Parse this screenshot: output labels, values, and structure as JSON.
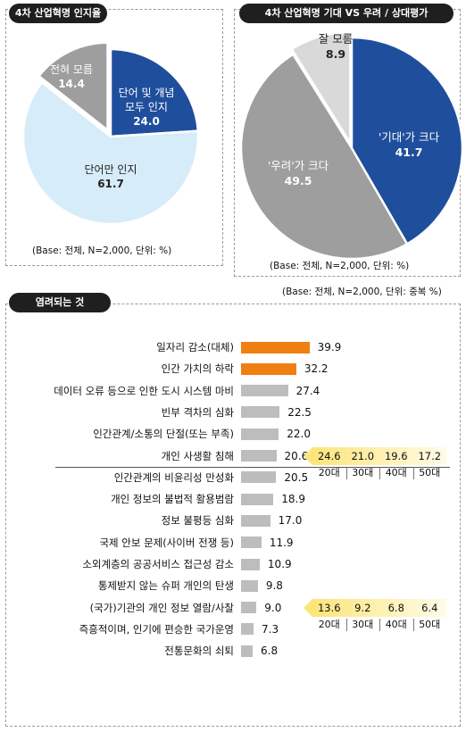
{
  "colors": {
    "navy": "#1f4e9c",
    "skyblue": "#d6ecf8",
    "gray": "#9e9e9e",
    "lightgray": "#d9d9d9",
    "orange": "#f07f12",
    "barGray": "#bdbdbd",
    "highlight": "#fdf2b5"
  },
  "header": {
    "awareness_title": "4차 산업혁명 인지율",
    "expectation_title": "4차 산업혁명 기대 VS 우려 / 상대평가",
    "concerns_title": "염려되는 것"
  },
  "notes": {
    "awareness_base": "(Base: 전체, N=2,000, 단위: %)",
    "expectation_base": "(Base: 전체, N=2,000, 단위: %)",
    "concerns_base": "(Base: 전체, N=2,000, 단위: 중복 %)"
  },
  "chart_data": [
    {
      "type": "pie",
      "title": "4차 산업혁명 인지율",
      "slices": [
        {
          "label": "단어 및 개념\n모두 인지",
          "value": 24.0,
          "display": "24.0",
          "color": "#1f4e9c"
        },
        {
          "label": "단어만 인지",
          "value": 61.7,
          "display": "61.7",
          "color": "#d6ecf8"
        },
        {
          "label": "전혀 모름",
          "value": 14.4,
          "display": "14.4",
          "color": "#9e9e9e"
        }
      ]
    },
    {
      "type": "pie",
      "title": "4차 산업혁명 기대 VS 우려 / 상대평가",
      "slices": [
        {
          "label": "'기대'가 크다",
          "value": 41.7,
          "display": "41.7",
          "color": "#1f4e9c"
        },
        {
          "label": "'우려'가 크다",
          "value": 49.5,
          "display": "49.5",
          "color": "#9e9e9e"
        },
        {
          "label": "잘 모름",
          "value": 8.9,
          "display": "8.9",
          "color": "#d9d9d9"
        }
      ]
    },
    {
      "type": "bar",
      "orientation": "horizontal",
      "title": "염려되는 것",
      "categories": [
        "일자리 감소(대체)",
        "인간 가치의 하락",
        "데이터 오류 등으로 인한 도시 시스템 마비",
        "빈부 격차의 심화",
        "인간관계/소통의 단절(또는 부족)",
        "개인 사생활 침해",
        "인간관계의 비윤리성 만성화",
        "개인 정보의 불법적 활용범람",
        "정보 불평등 심화",
        "국제 안보 문제(사이버 전쟁 등)",
        "소외계층의 공공서비스 접근성 감소",
        "통제받지 않는 슈퍼 개인의 탄생",
        "(국가)기관의 개인 정보 열람/사찰",
        "즉흥적이며, 인기에 편승한 국가운영",
        "전통문화의 쇠퇴"
      ],
      "values": [
        39.9,
        32.2,
        27.4,
        22.5,
        22.0,
        20.6,
        20.5,
        18.9,
        17.0,
        11.9,
        10.9,
        9.8,
        9.0,
        7.3,
        6.8
      ],
      "value_labels": [
        "39.9",
        "32.2",
        "27.4",
        "22.5",
        "22.0",
        "20.6",
        "20.5",
        "18.9",
        "17.0",
        "11.9",
        "10.9",
        "9.8",
        "9.0",
        "7.3",
        "6.8"
      ],
      "highlighted_count": 2,
      "age_breakdowns": [
        {
          "category_index": 5,
          "groups": [
            "20대",
            "30대",
            "40대",
            "50대"
          ],
          "values": [
            "24.6",
            "21.0",
            "19.6",
            "17.2"
          ]
        },
        {
          "category_index": 12,
          "groups": [
            "20대",
            "30대",
            "40대",
            "50대"
          ],
          "values": [
            "13.6",
            "9.2",
            "6.8",
            "6.4"
          ]
        }
      ]
    }
  ]
}
